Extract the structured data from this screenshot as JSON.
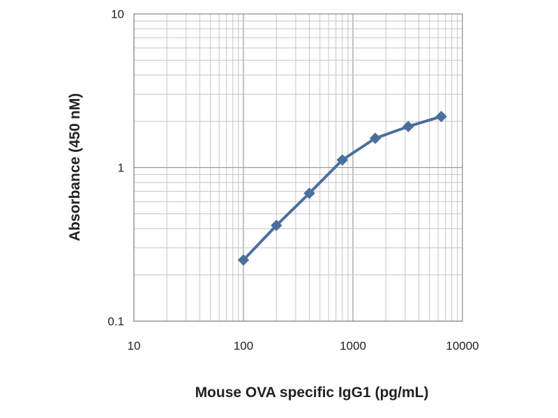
{
  "chart_data": {
    "type": "line",
    "title": "",
    "xlabel": "Mouse OVA specific IgG1 (pg/mL)",
    "ylabel": "Absorbance (450 nM)",
    "x_scale": "log",
    "y_scale": "log",
    "xlim": [
      10,
      10000
    ],
    "ylim": [
      0.1,
      10
    ],
    "x_ticks": [
      10,
      100,
      1000,
      10000
    ],
    "x_tick_labels": [
      "10",
      "100",
      "1000",
      "10000"
    ],
    "y_ticks": [
      0.1,
      1,
      10
    ],
    "y_tick_labels": [
      "0.1",
      "1",
      "10"
    ],
    "grid": true,
    "legend": "none",
    "series": [
      {
        "color": "#4a6f9c",
        "marker": "diamond",
        "x": [
          100,
          200,
          400,
          800,
          1600,
          3200,
          6400
        ],
        "y": [
          0.25,
          0.42,
          0.68,
          1.12,
          1.55,
          1.85,
          2.15
        ]
      }
    ]
  }
}
